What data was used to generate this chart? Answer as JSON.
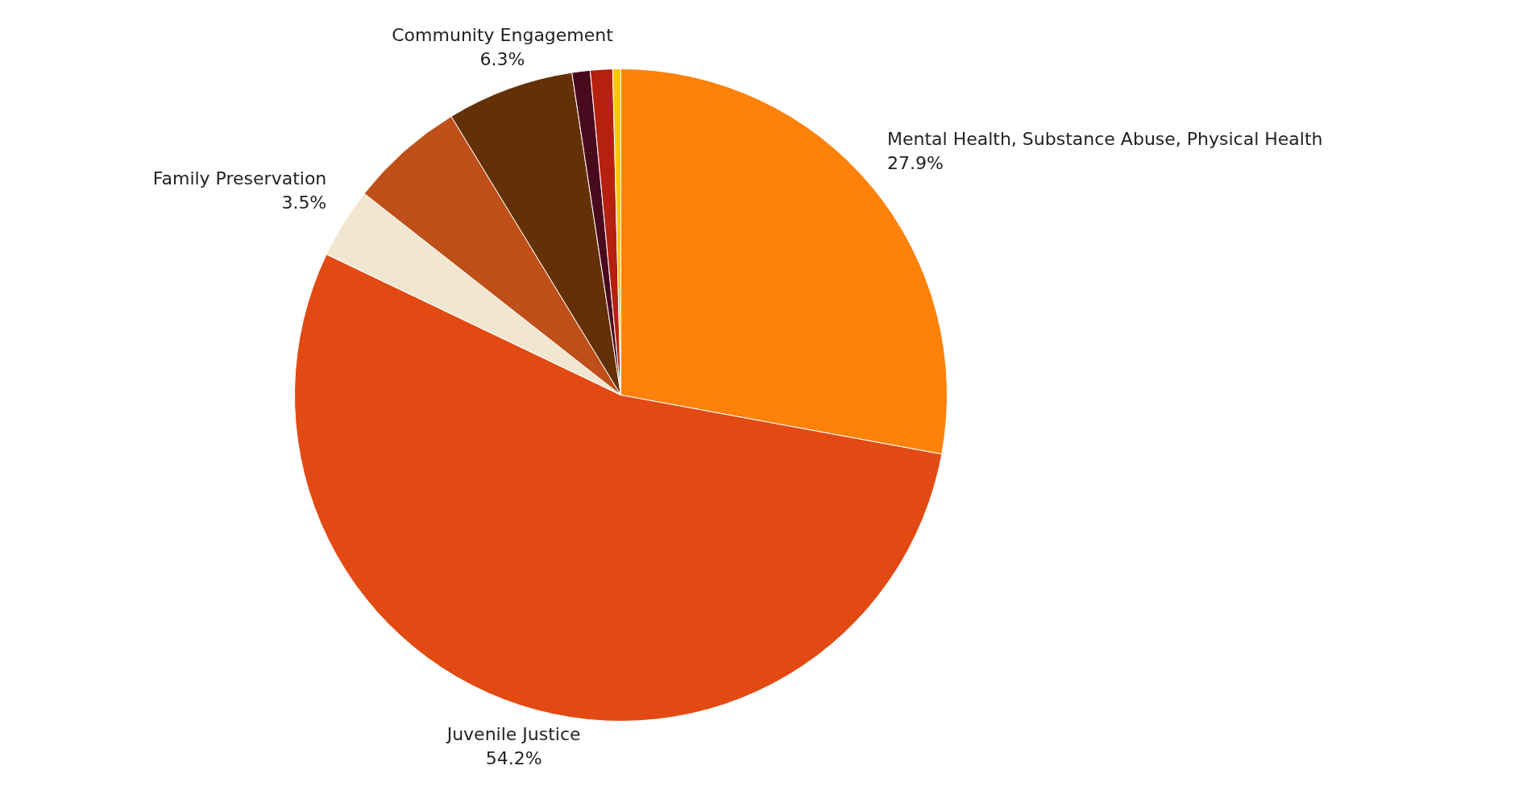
{
  "chart_data": {
    "type": "pie",
    "categories": [
      "Mental Health, Substance Abuse, Physical Health",
      "Juvenile Justice",
      "Family Preservation",
      null,
      "Community Engagement",
      null,
      null,
      null
    ],
    "values": [
      27.9,
      54.2,
      3.5,
      5.7,
      6.3,
      0.9,
      1.1,
      0.4
    ],
    "value_labels": [
      "27.9%",
      "54.2%",
      "3.5%",
      null,
      "6.3%",
      null,
      null,
      null
    ],
    "colors": [
      "#fe820a",
      "#e34a13",
      "#f1e6d0",
      "#bf4f19",
      "#633105",
      "#4a0a1e",
      "#b5200f",
      "#fcc40f"
    ]
  }
}
